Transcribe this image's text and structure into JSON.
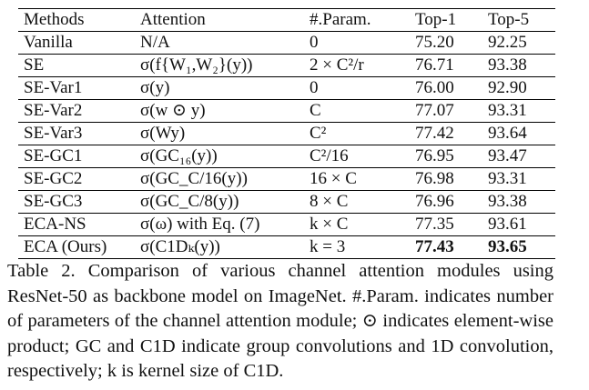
{
  "table": {
    "headers": [
      "Methods",
      "Attention",
      "#.Param.",
      "Top-1",
      "Top-5"
    ],
    "groups": [
      [
        {
          "method": "Vanilla",
          "attention": "N/A",
          "param": "0",
          "top1": "75.20",
          "top5": "92.25",
          "bold": false
        },
        {
          "method": "SE",
          "attention": "σ(f{W₁,W₂}(y))",
          "param": "2 × C²/r",
          "top1": "76.71",
          "top5": "93.38",
          "bold": false
        }
      ],
      [
        {
          "method": "SE-Var1",
          "attention": "σ(y)",
          "param": "0",
          "top1": "76.00",
          "top5": "92.90",
          "bold": false
        },
        {
          "method": "SE-Var2",
          "attention": "σ(w ⊙ y)",
          "param": "C",
          "top1": "77.07",
          "top5": "93.31",
          "bold": false
        },
        {
          "method": "SE-Var3",
          "attention": "σ(Wy)",
          "param": "C²",
          "top1": "77.42",
          "top5": "93.64",
          "bold": false
        }
      ],
      [
        {
          "method": "SE-GC1",
          "attention": "σ(GC₁₆(y))",
          "param": "C²/16",
          "top1": "76.95",
          "top5": "93.47",
          "bold": false
        },
        {
          "method": "SE-GC2",
          "attention": "σ(GC_C/16(y))",
          "param": "16 × C",
          "top1": "76.98",
          "top5": "93.31",
          "bold": false
        },
        {
          "method": "SE-GC3",
          "attention": "σ(GC_C/8(y))",
          "param": "8 × C",
          "top1": "76.96",
          "top5": "93.38",
          "bold": false
        }
      ],
      [
        {
          "method": "ECA-NS",
          "attention": "σ(ω) with Eq. (7)",
          "param": "k × C",
          "top1": "77.35",
          "top5": "93.61",
          "bold": false
        },
        {
          "method": "ECA (Ours)",
          "attention": "σ(C1Dₖ(y))",
          "param": "k = 3",
          "top1": "77.43",
          "top5": "93.65",
          "bold": true
        }
      ]
    ]
  },
  "caption": {
    "label": "Table 2.",
    "text": "Comparison of various channel attention modules using ResNet-50 as backbone model on ImageNet. #.Param. indicates number of parameters of the channel attention module; ⊙ indicates element-wise product; GC and C1D indicate group convolutions and 1D convolution, respectively; k is kernel size of C1D."
  }
}
